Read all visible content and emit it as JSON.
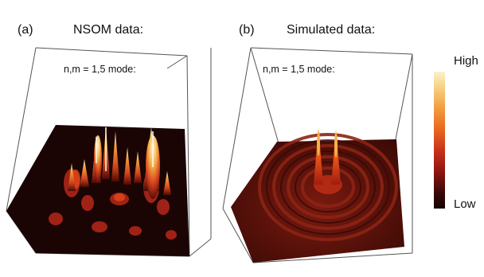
{
  "panels": [
    {
      "letter": "(a)",
      "title": "NSOM data:",
      "mode_label": "n,m = 1,5 mode:"
    },
    {
      "letter": "(b)",
      "title": "Simulated data:",
      "mode_label": "n,m = 1,5 mode:"
    }
  ],
  "colorbar": {
    "high_label": "High",
    "low_label": "Low"
  },
  "colors": {
    "surface_dark": "#1a0504",
    "peak_light": "#fbf1cf",
    "mid_orange": "#e8691e",
    "deep_red": "#8a1410"
  }
}
